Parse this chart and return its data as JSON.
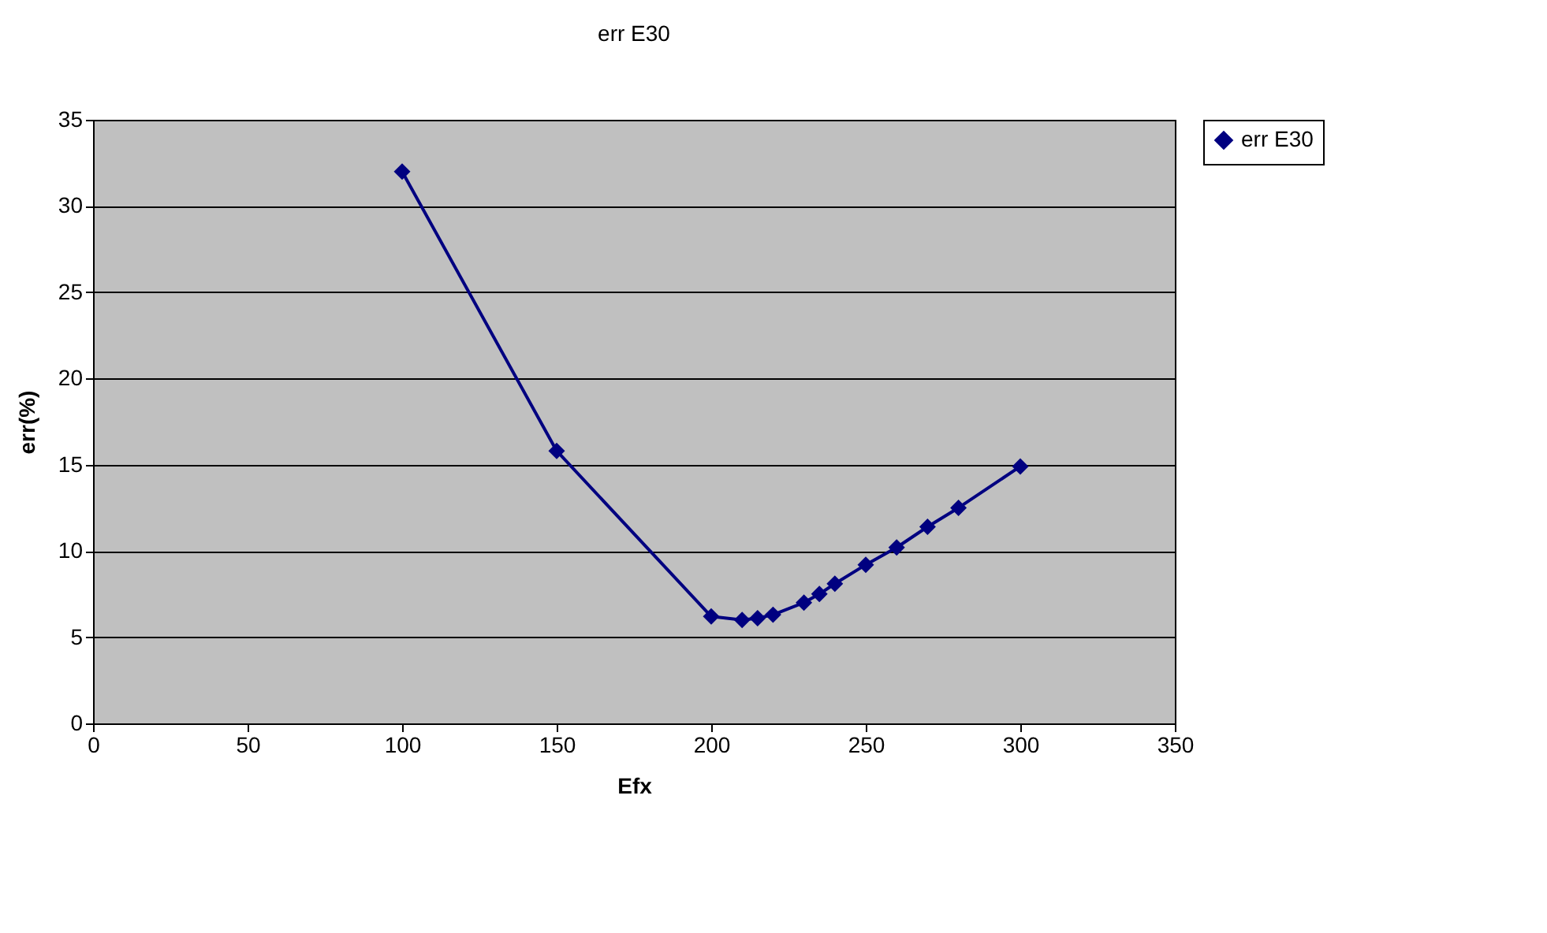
{
  "chart_data": {
    "type": "line",
    "title": "err E30",
    "xlabel": "Efx",
    "ylabel": "err(%)",
    "x": [
      100,
      150,
      200,
      210,
      215,
      220,
      230,
      235,
      240,
      250,
      260,
      270,
      280,
      300
    ],
    "series": [
      {
        "name": "err E30",
        "color": "#000080",
        "values": [
          32.0,
          15.8,
          6.2,
          6.0,
          6.1,
          6.3,
          7.0,
          7.5,
          8.1,
          9.2,
          10.2,
          11.4,
          12.5,
          14.9
        ]
      }
    ],
    "xlim": [
      0,
      350
    ],
    "xticks": [
      0,
      50,
      100,
      150,
      200,
      250,
      300,
      350
    ],
    "ylim": [
      0,
      35
    ],
    "yticks": [
      0,
      5,
      10,
      15,
      20,
      25,
      30,
      35
    ],
    "grid": "y",
    "legend": "right",
    "marker": "diamond",
    "line_style": "solid"
  }
}
